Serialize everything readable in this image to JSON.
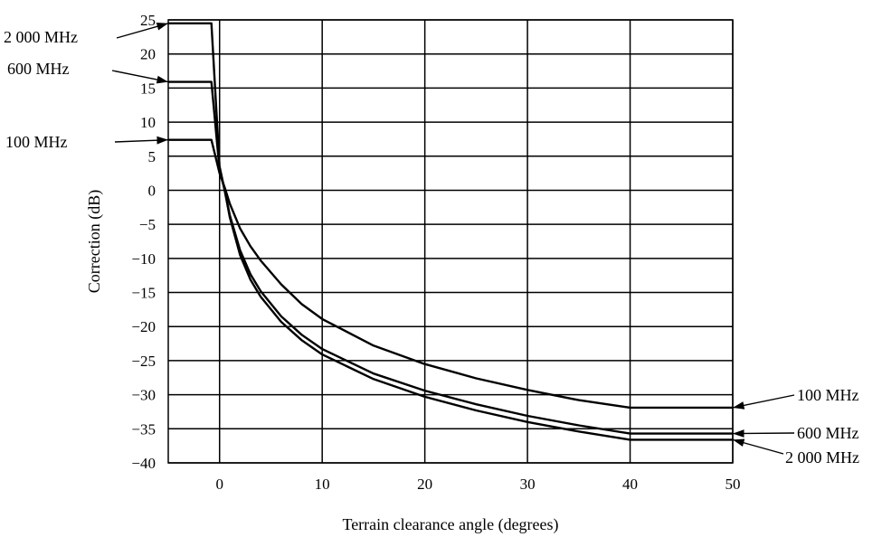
{
  "chart_data": {
    "type": "line",
    "xlabel": "Terrain clearance angle (degrees)",
    "ylabel": "Correction (dB)",
    "xlim": [
      -5,
      50
    ],
    "ylim": [
      -40,
      25
    ],
    "x_ticks": [
      "0",
      "10",
      "20",
      "30",
      "40",
      "50"
    ],
    "x_tick_values": [
      0,
      10,
      20,
      30,
      40,
      50
    ],
    "y_ticks": [
      "25",
      "20",
      "15",
      "10",
      "5",
      "0",
      "−5",
      "−10",
      "−15",
      "−20",
      "−25",
      "−30",
      "−35",
      "−40"
    ],
    "y_tick_values": [
      25,
      20,
      15,
      10,
      5,
      0,
      -5,
      -10,
      -15,
      -20,
      -25,
      -30,
      -35,
      -40
    ],
    "grid": true,
    "series": [
      {
        "name": "100 MHz",
        "x": [
          -5,
          -0.8,
          0,
          0.5,
          1,
          2,
          3,
          4,
          6,
          8,
          10,
          15,
          20,
          25,
          30,
          35,
          40,
          50
        ],
        "y": [
          7.4,
          7.4,
          2.5,
          0.4,
          -2.0,
          -5.6,
          -8.2,
          -10.3,
          -13.8,
          -16.7,
          -18.9,
          -22.8,
          -25.5,
          -27.6,
          -29.3,
          -30.8,
          -31.9,
          -31.9
        ]
      },
      {
        "name": "600 MHz",
        "x": [
          -5,
          -0.8,
          0,
          0.5,
          1,
          2,
          3,
          4,
          6,
          8,
          10,
          15,
          20,
          25,
          30,
          35,
          40,
          50
        ],
        "y": [
          15.9,
          15.9,
          3.0,
          0.0,
          -3.7,
          -8.8,
          -12.3,
          -14.8,
          -18.5,
          -21.2,
          -23.3,
          -26.9,
          -29.4,
          -31.4,
          -33.1,
          -34.5,
          -35.7,
          -35.7
        ]
      },
      {
        "name": "2 000 MHz",
        "x": [
          -5,
          -0.8,
          0,
          0.5,
          1,
          2,
          3,
          4,
          6,
          8,
          10,
          15,
          20,
          25,
          30,
          35,
          40,
          50
        ],
        "y": [
          24.5,
          24.5,
          3.5,
          0.0,
          -4.0,
          -9.5,
          -13.1,
          -15.6,
          -19.3,
          -22.0,
          -24.1,
          -27.7,
          -30.3,
          -32.3,
          -34.0,
          -35.4,
          -36.6,
          -36.6
        ]
      }
    ]
  }
}
